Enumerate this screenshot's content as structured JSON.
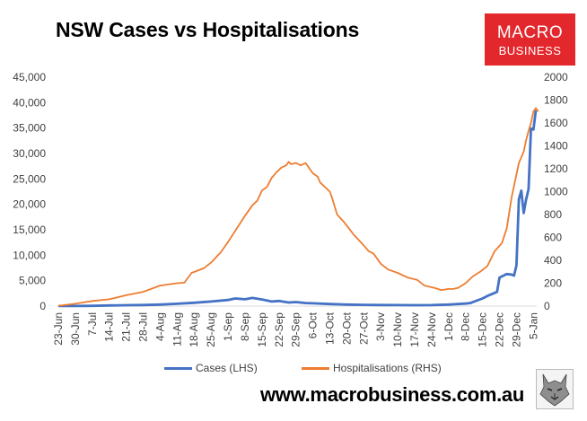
{
  "title": "NSW Cases vs Hospitalisations",
  "logo": {
    "line1": "MACRO",
    "line2": "BUSINESS",
    "color": "#e3282d"
  },
  "website": "www.macrobusiness.com.au",
  "legend": {
    "cases": "Cases (LHS)",
    "hosp": "Hospitalisations (RHS)"
  },
  "chart_data": {
    "type": "line",
    "title": "NSW Cases vs Hospitalisations",
    "x_tick_labels": [
      "23-Jun",
      "30-Jun",
      "7-Jul",
      "14-Jul",
      "21-Jul",
      "28-Jul",
      "4-Aug",
      "11-Aug",
      "18-Aug",
      "25-Aug",
      "1-Sep",
      "8-Sep",
      "15-Sep",
      "22-Sep",
      "29-Sep",
      "6-Oct",
      "13-Oct",
      "20-Oct",
      "27-Oct",
      "3-Nov",
      "10-Nov",
      "17-Nov",
      "24-Nov",
      "1-Dec",
      "8-Dec",
      "15-Dec",
      "22-Dec",
      "29-Dec",
      "5-Jan"
    ],
    "y_left": {
      "label": "Cases (LHS)",
      "min": 0,
      "max": 45000,
      "ticks": [
        0,
        5000,
        10000,
        15000,
        20000,
        25000,
        30000,
        35000,
        40000,
        45000
      ],
      "tick_labels": [
        "0",
        "5,000",
        "10,000",
        "15,000",
        "20,000",
        "25,000",
        "30,000",
        "35,000",
        "40,000",
        "45,000"
      ]
    },
    "y_right": {
      "label": "Hospitalisations (RHS)",
      "min": 0,
      "max": 2000,
      "ticks": [
        0,
        200,
        400,
        600,
        800,
        1000,
        1200,
        1400,
        1600,
        1800,
        2000
      ],
      "tick_labels": [
        "0",
        "200",
        "400",
        "600",
        "800",
        "1000",
        "1200",
        "1400",
        "1600",
        "1800",
        "2000"
      ]
    },
    "series": [
      {
        "name": "Cases (LHS)",
        "axis": "left",
        "color": "#4472c4",
        "points": [
          [
            0,
            20
          ],
          [
            7,
            25
          ],
          [
            14,
            60
          ],
          [
            21,
            120
          ],
          [
            28,
            170
          ],
          [
            35,
            220
          ],
          [
            42,
            300
          ],
          [
            49,
            450
          ],
          [
            56,
            650
          ],
          [
            63,
            900
          ],
          [
            70,
            1200
          ],
          [
            73,
            1500
          ],
          [
            77,
            1350
          ],
          [
            80,
            1600
          ],
          [
            84,
            1300
          ],
          [
            88,
            900
          ],
          [
            91,
            1000
          ],
          [
            95,
            700
          ],
          [
            98,
            800
          ],
          [
            102,
            600
          ],
          [
            105,
            550
          ],
          [
            112,
            400
          ],
          [
            119,
            300
          ],
          [
            126,
            250
          ],
          [
            133,
            220
          ],
          [
            140,
            200
          ],
          [
            147,
            180
          ],
          [
            154,
            200
          ],
          [
            161,
            300
          ],
          [
            168,
            500
          ],
          [
            170,
            600
          ],
          [
            175,
            1500
          ],
          [
            177,
            2000
          ],
          [
            180,
            2600
          ],
          [
            181,
            2800
          ],
          [
            182,
            5600
          ],
          [
            185,
            6300
          ],
          [
            187,
            6200
          ],
          [
            188,
            6000
          ],
          [
            189,
            8000
          ],
          [
            190,
            21000
          ],
          [
            191,
            22700
          ],
          [
            192,
            18300
          ],
          [
            193,
            21000
          ],
          [
            194,
            23000
          ],
          [
            195,
            34900
          ],
          [
            196,
            34700
          ],
          [
            197,
            38500
          ]
        ]
      },
      {
        "name": "Hospitalisations (RHS)",
        "axis": "right",
        "color": "#ed7d31",
        "points": [
          [
            0,
            2
          ],
          [
            7,
            20
          ],
          [
            14,
            45
          ],
          [
            21,
            60
          ],
          [
            28,
            95
          ],
          [
            35,
            125
          ],
          [
            42,
            180
          ],
          [
            49,
            200
          ],
          [
            52,
            205
          ],
          [
            55,
            290
          ],
          [
            60,
            330
          ],
          [
            63,
            380
          ],
          [
            67,
            470
          ],
          [
            70,
            560
          ],
          [
            74,
            690
          ],
          [
            77,
            790
          ],
          [
            80,
            880
          ],
          [
            82,
            920
          ],
          [
            84,
            1010
          ],
          [
            86,
            1040
          ],
          [
            88,
            1120
          ],
          [
            90,
            1170
          ],
          [
            92,
            1210
          ],
          [
            94,
            1230
          ],
          [
            95,
            1260
          ],
          [
            96,
            1240
          ],
          [
            98,
            1250
          ],
          [
            100,
            1230
          ],
          [
            102,
            1250
          ],
          [
            103,
            1220
          ],
          [
            105,
            1160
          ],
          [
            107,
            1130
          ],
          [
            108,
            1080
          ],
          [
            112,
            1000
          ],
          [
            113,
            940
          ],
          [
            115,
            800
          ],
          [
            118,
            730
          ],
          [
            122,
            620
          ],
          [
            126,
            530
          ],
          [
            128,
            480
          ],
          [
            130,
            460
          ],
          [
            133,
            370
          ],
          [
            136,
            320
          ],
          [
            140,
            290
          ],
          [
            144,
            250
          ],
          [
            148,
            230
          ],
          [
            151,
            180
          ],
          [
            155,
            160
          ],
          [
            158,
            140
          ],
          [
            161,
            150
          ],
          [
            163,
            150
          ],
          [
            165,
            160
          ],
          [
            168,
            200
          ],
          [
            171,
            260
          ],
          [
            174,
            300
          ],
          [
            177,
            350
          ],
          [
            180,
            480
          ],
          [
            183,
            550
          ],
          [
            185,
            680
          ],
          [
            187,
            950
          ],
          [
            188,
            1050
          ],
          [
            189,
            1150
          ],
          [
            190,
            1250
          ],
          [
            191,
            1300
          ],
          [
            192,
            1350
          ],
          [
            193,
            1450
          ],
          [
            194,
            1530
          ],
          [
            195,
            1600
          ],
          [
            196,
            1700
          ],
          [
            197,
            1730
          ],
          [
            198,
            1700
          ]
        ]
      }
    ]
  }
}
